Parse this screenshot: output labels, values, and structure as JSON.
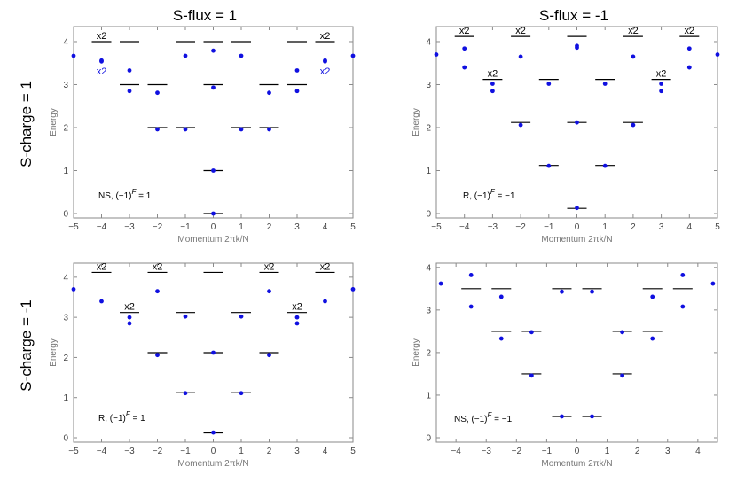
{
  "col_titles": [
    "S-flux = 1",
    "S-flux = -1"
  ],
  "row_titles": [
    "S-charge = 1",
    "S-charge = -1"
  ],
  "colors": {
    "dot": "#1010e0",
    "level": "#000000",
    "axis": "#8a8a8a"
  },
  "chart_data": [
    {
      "type": "scatter",
      "panel": "top-left",
      "xlabel": "Momentum 2πk/N",
      "ylabel": "Energy",
      "xlim": [
        -5,
        5
      ],
      "ylim": [
        0,
        4.35
      ],
      "xticks": [
        -5,
        -4,
        -3,
        -2,
        -1,
        0,
        1,
        2,
        3,
        4,
        5
      ],
      "yticks": [
        0,
        1,
        2,
        3,
        4
      ],
      "annotation": {
        "prefix": "NS, (−1)",
        "sup": "F",
        "suffix": " = 1"
      },
      "dots": [
        [
          -5,
          3.67
        ],
        [
          -4,
          3.54
        ],
        [
          -4,
          3.56
        ],
        [
          -3,
          3.33
        ],
        [
          -3,
          2.85
        ],
        [
          -2,
          2.81
        ],
        [
          -2,
          1.96
        ],
        [
          -1,
          3.67
        ],
        [
          -1,
          1.96
        ],
        [
          0,
          3.79
        ],
        [
          0,
          2.93
        ],
        [
          0,
          1.0
        ],
        [
          0,
          0.0
        ],
        [
          1,
          3.67
        ],
        [
          1,
          1.96
        ],
        [
          2,
          2.81
        ],
        [
          2,
          1.96
        ],
        [
          3,
          3.33
        ],
        [
          3,
          2.85
        ],
        [
          4,
          3.54
        ],
        [
          4,
          3.56
        ],
        [
          5,
          3.67
        ]
      ],
      "levels": [
        [
          -4,
          4
        ],
        [
          -3,
          4
        ],
        [
          -3,
          3
        ],
        [
          -2,
          3
        ],
        [
          -2,
          2
        ],
        [
          -1,
          4
        ],
        [
          -1,
          2
        ],
        [
          0,
          4
        ],
        [
          0,
          3
        ],
        [
          0,
          1
        ],
        [
          0,
          0
        ],
        [
          1,
          4
        ],
        [
          1,
          2
        ],
        [
          2,
          3
        ],
        [
          2,
          2
        ],
        [
          3,
          4
        ],
        [
          3,
          3
        ],
        [
          4,
          4
        ]
      ],
      "multiplicities": [
        {
          "text": "x2",
          "x": -4,
          "y": 4,
          "pos": "above",
          "color": "black"
        },
        {
          "text": "x2",
          "x": 4,
          "y": 4,
          "pos": "above",
          "color": "black"
        },
        {
          "text": "x2",
          "x": -4,
          "y": 3.55,
          "pos": "below",
          "color": "blue"
        },
        {
          "text": "x2",
          "x": 4,
          "y": 3.55,
          "pos": "below",
          "color": "blue"
        }
      ]
    },
    {
      "type": "scatter",
      "panel": "top-right",
      "xlabel": "Momentum 2πk/N",
      "ylabel": "Energy",
      "xlim": [
        -5,
        5
      ],
      "ylim": [
        0,
        4.35
      ],
      "xticks": [
        -5,
        -4,
        -3,
        -2,
        -1,
        0,
        1,
        2,
        3,
        4,
        5
      ],
      "yticks": [
        0,
        1,
        2,
        3,
        4
      ],
      "annotation": {
        "prefix": "R, (−1)",
        "sup": "F",
        "suffix": " = −1"
      },
      "dots": [
        [
          -5,
          3.7
        ],
        [
          -4,
          3.84
        ],
        [
          -4,
          3.4
        ],
        [
          -3,
          3.02
        ],
        [
          -3,
          2.85
        ],
        [
          -2,
          3.65
        ],
        [
          -2,
          2.06
        ],
        [
          -1,
          3.02
        ],
        [
          -1,
          1.11
        ],
        [
          0,
          3.9
        ],
        [
          0,
          3.86
        ],
        [
          0,
          2.12
        ],
        [
          0,
          0.13
        ],
        [
          1,
          3.02
        ],
        [
          1,
          1.11
        ],
        [
          2,
          3.65
        ],
        [
          2,
          2.06
        ],
        [
          3,
          3.02
        ],
        [
          3,
          2.85
        ],
        [
          4,
          3.84
        ],
        [
          4,
          3.4
        ],
        [
          5,
          3.7
        ]
      ],
      "levels": [
        [
          -4,
          4.12
        ],
        [
          -3,
          3.12
        ],
        [
          -2,
          4.12
        ],
        [
          -2,
          2.12
        ],
        [
          -1,
          3.12
        ],
        [
          -1,
          1.12
        ],
        [
          0,
          4.12
        ],
        [
          0,
          2.12
        ],
        [
          0,
          0.12
        ],
        [
          1,
          3.12
        ],
        [
          1,
          1.12
        ],
        [
          2,
          4.12
        ],
        [
          2,
          2.12
        ],
        [
          3,
          3.12
        ],
        [
          4,
          4.12
        ]
      ],
      "multiplicities": [
        {
          "text": "x2",
          "x": -4,
          "y": 4.12,
          "pos": "above",
          "color": "black"
        },
        {
          "text": "x2",
          "x": -2,
          "y": 4.12,
          "pos": "above",
          "color": "black"
        },
        {
          "text": "x2",
          "x": 2,
          "y": 4.12,
          "pos": "above",
          "color": "black"
        },
        {
          "text": "x2",
          "x": 4,
          "y": 4.12,
          "pos": "above",
          "color": "black"
        },
        {
          "text": "x2",
          "x": -3,
          "y": 3.12,
          "pos": "above",
          "color": "black"
        },
        {
          "text": "x2",
          "x": 3,
          "y": 3.12,
          "pos": "above",
          "color": "black"
        }
      ]
    },
    {
      "type": "scatter",
      "panel": "bottom-left",
      "xlabel": "Momentum 2πk/N",
      "ylabel": "Energy",
      "xlim": [
        -5,
        5
      ],
      "ylim": [
        0,
        4.35
      ],
      "xticks": [
        -5,
        -4,
        -3,
        -2,
        -1,
        0,
        1,
        2,
        3,
        4,
        5
      ],
      "yticks": [
        0,
        1,
        2,
        3,
        4
      ],
      "annotation": {
        "prefix": "R, (−1)",
        "sup": "F",
        "suffix": " = 1"
      },
      "dots": [
        [
          -5,
          3.7
        ],
        [
          -4,
          3.4
        ],
        [
          -3,
          3.0
        ],
        [
          -3,
          2.85
        ],
        [
          -2,
          3.65
        ],
        [
          -2,
          2.06
        ],
        [
          -1,
          3.02
        ],
        [
          -1,
          1.11
        ],
        [
          0,
          2.12
        ],
        [
          0,
          0.13
        ],
        [
          1,
          3.02
        ],
        [
          1,
          1.11
        ],
        [
          2,
          3.65
        ],
        [
          2,
          2.06
        ],
        [
          3,
          3.0
        ],
        [
          3,
          2.85
        ],
        [
          4,
          3.4
        ],
        [
          5,
          3.7
        ]
      ],
      "levels": [
        [
          -4,
          4.12
        ],
        [
          -3,
          3.12
        ],
        [
          -2,
          4.12
        ],
        [
          -2,
          2.12
        ],
        [
          -1,
          3.12
        ],
        [
          -1,
          1.12
        ],
        [
          0,
          4.12
        ],
        [
          0,
          2.12
        ],
        [
          0,
          0.12
        ],
        [
          1,
          3.12
        ],
        [
          1,
          1.12
        ],
        [
          2,
          4.12
        ],
        [
          2,
          2.12
        ],
        [
          3,
          3.12
        ],
        [
          4,
          4.12
        ]
      ],
      "multiplicities": [
        {
          "text": "x2",
          "x": -4,
          "y": 4.12,
          "pos": "above",
          "color": "black"
        },
        {
          "text": "x2",
          "x": -2,
          "y": 4.12,
          "pos": "above",
          "color": "black"
        },
        {
          "text": "x2",
          "x": 2,
          "y": 4.12,
          "pos": "above",
          "color": "black"
        },
        {
          "text": "x2",
          "x": 4,
          "y": 4.12,
          "pos": "above",
          "color": "black"
        },
        {
          "text": "x2",
          "x": -3,
          "y": 3.12,
          "pos": "above",
          "color": "black"
        },
        {
          "text": "x2",
          "x": 3,
          "y": 3.12,
          "pos": "above",
          "color": "black"
        }
      ]
    },
    {
      "type": "scatter",
      "panel": "bottom-right",
      "xlabel": "Momentum 2πk/N",
      "ylabel": "Energy",
      "xlim": [
        -4.65,
        4.65
      ],
      "ylim": [
        0,
        4.1
      ],
      "xticks": [
        -4,
        -3,
        -2,
        -1,
        0,
        1,
        2,
        3,
        4
      ],
      "yticks": [
        0,
        1,
        2,
        3,
        4
      ],
      "annotation": {
        "prefix": "NS, (−1)",
        "sup": "F",
        "suffix": " = −1"
      },
      "dots": [
        [
          -4.5,
          3.62
        ],
        [
          -3.5,
          3.82
        ],
        [
          -3.5,
          3.08
        ],
        [
          -2.5,
          3.31
        ],
        [
          -2.5,
          2.33
        ],
        [
          -1.5,
          2.48
        ],
        [
          -1.5,
          1.46
        ],
        [
          -0.5,
          3.43
        ],
        [
          -0.5,
          0.5
        ],
        [
          0.5,
          3.43
        ],
        [
          0.5,
          0.5
        ],
        [
          1.5,
          2.48
        ],
        [
          1.5,
          1.46
        ],
        [
          2.5,
          3.31
        ],
        [
          2.5,
          2.33
        ],
        [
          3.5,
          3.82
        ],
        [
          3.5,
          3.08
        ],
        [
          4.5,
          3.62
        ]
      ],
      "levels": [
        [
          -3.5,
          3.5
        ],
        [
          -2.5,
          3.5
        ],
        [
          -2.5,
          2.5
        ],
        [
          -1.5,
          2.5
        ],
        [
          -1.5,
          1.5
        ],
        [
          -0.5,
          3.5
        ],
        [
          -0.5,
          0.5
        ],
        [
          0.5,
          3.5
        ],
        [
          0.5,
          0.5
        ],
        [
          1.5,
          2.5
        ],
        [
          1.5,
          1.5
        ],
        [
          2.5,
          3.5
        ],
        [
          2.5,
          2.5
        ],
        [
          3.5,
          3.5
        ]
      ],
      "multiplicities": []
    }
  ]
}
